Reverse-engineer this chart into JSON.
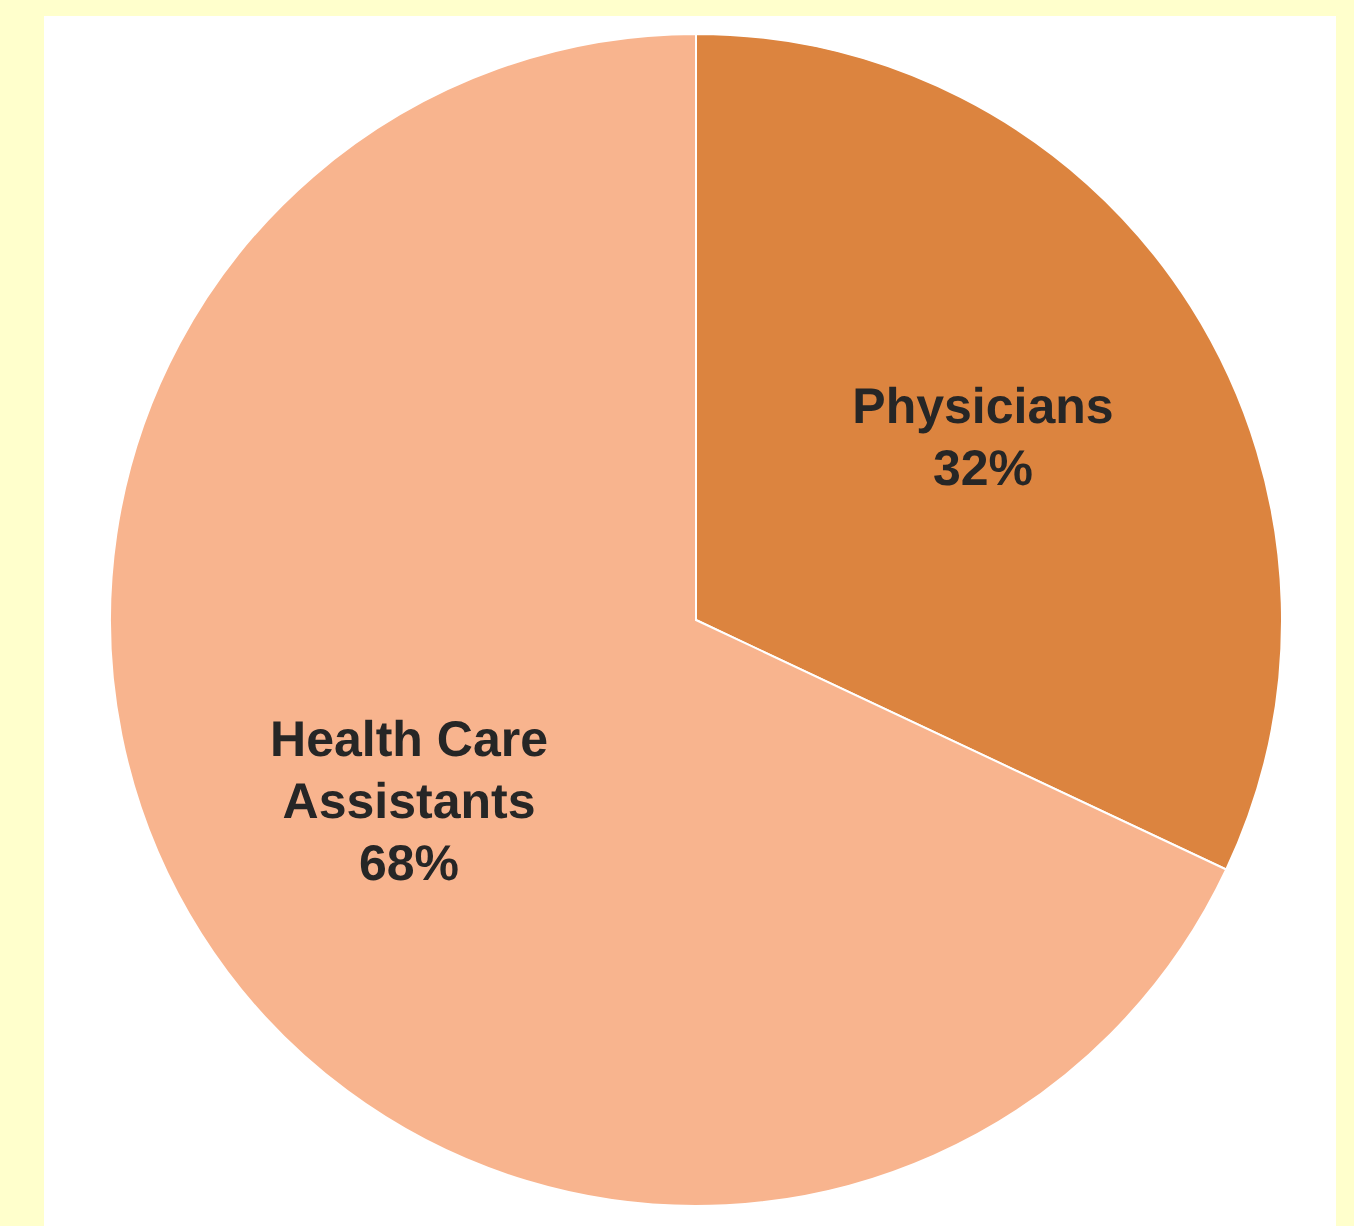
{
  "chart_data": {
    "type": "pie",
    "categories": [
      "Physicians",
      "Health Care Assistants"
    ],
    "values": [
      32,
      68
    ],
    "colors": [
      "#dc843f",
      "#f8b48e"
    ],
    "data_labels": true,
    "value_labels": [
      "32%",
      "68%"
    ]
  }
}
